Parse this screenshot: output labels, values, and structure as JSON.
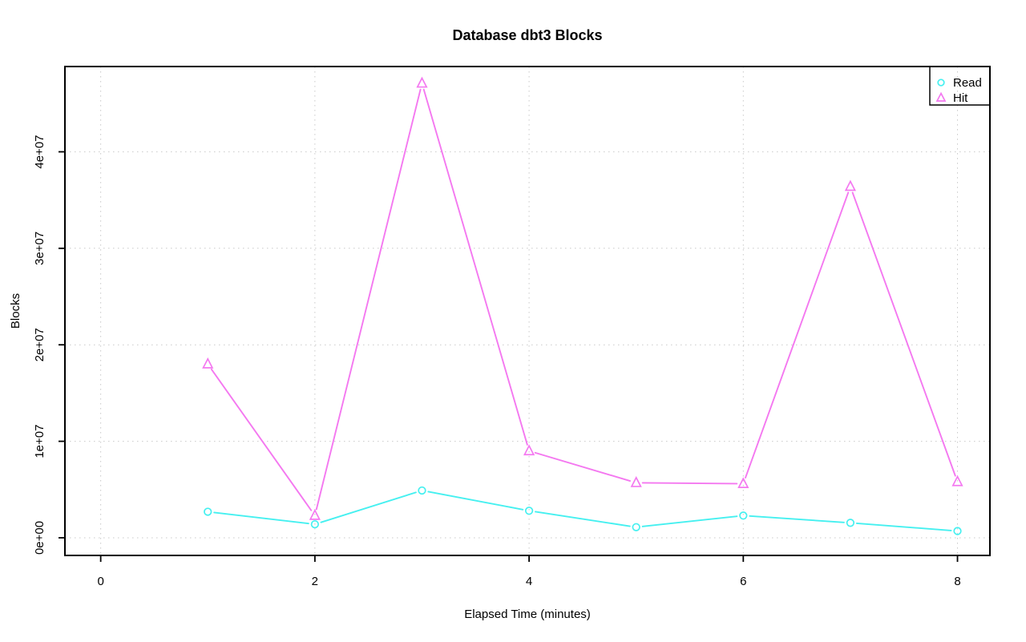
{
  "chart_data": {
    "type": "line",
    "title": "Database dbt3 Blocks",
    "xlabel": "Elapsed Time (minutes)",
    "ylabel": "Blocks",
    "x": [
      1,
      2,
      3,
      4,
      5,
      6,
      7,
      8
    ],
    "series": [
      {
        "name": "Read",
        "marker": "circle",
        "color": "#45F0F0",
        "values": [
          2700000,
          1400000,
          4900000,
          2800000,
          1100000,
          2300000,
          1550000,
          700000
        ]
      },
      {
        "name": "Hit",
        "marker": "triangle",
        "color": "#F478F0",
        "values": [
          18000000,
          2300000,
          47100000,
          9000000,
          5700000,
          5600000,
          36400000,
          5800000
        ]
      }
    ],
    "x_ticks": {
      "values": [
        0,
        2,
        4,
        6,
        8
      ],
      "labels": [
        "0",
        "2",
        "4",
        "6",
        "8"
      ]
    },
    "y_ticks": {
      "values": [
        0,
        10000000,
        20000000,
        30000000,
        40000000
      ],
      "labels": [
        "0e+00",
        "1e+07",
        "2e+07",
        "3e+07",
        "4e+07"
      ]
    },
    "xlim": [
      -0.334,
      8.303
    ],
    "ylim": [
      -1830000,
      48840000
    ],
    "grid": {
      "show": true,
      "style": "dotted",
      "color": "#C9C9C9"
    },
    "legend": {
      "position": "top-right",
      "entries": [
        "Read",
        "Hit"
      ]
    },
    "colors": {
      "background": "#FFFFFF",
      "axis": "#000000",
      "text": "#000000"
    }
  }
}
